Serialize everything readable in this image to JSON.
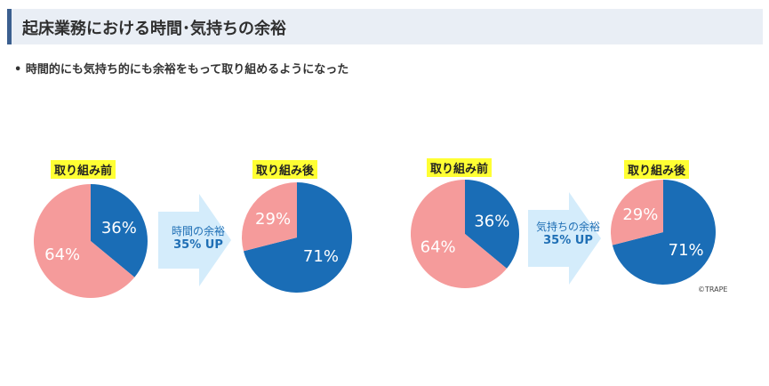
{
  "title": "起床業務における時間･気持ちの余裕",
  "bullet": "時間的にも気持ち的にも余裕をもって取り組めるようになった",
  "colors": {
    "blue": "#1a6db6",
    "pink": "#f59b9b",
    "arrow": "#d4ecfb",
    "label_bg": "#ffff33"
  },
  "arrows": [
    {
      "line1": "時間の余裕",
      "line2": "35% UP"
    },
    {
      "line1": "気持ちの余裕",
      "line2": "35% UP"
    }
  ],
  "credit": "©TRAPE",
  "chart_data": [
    {
      "type": "pie",
      "title": "取り組み前",
      "slices": [
        {
          "value": 36,
          "label": "36%",
          "color": "#1a6db6"
        },
        {
          "value": 64,
          "label": "64%",
          "color": "#f59b9b"
        }
      ]
    },
    {
      "type": "pie",
      "title": "取り組み後",
      "slices": [
        {
          "value": 71,
          "label": "71%",
          "color": "#1a6db6"
        },
        {
          "value": 29,
          "label": "29%",
          "color": "#f59b9b"
        }
      ]
    },
    {
      "type": "pie",
      "title": "取り組み前",
      "slices": [
        {
          "value": 36,
          "label": "36%",
          "color": "#1a6db6"
        },
        {
          "value": 64,
          "label": "64%",
          "color": "#f59b9b"
        }
      ]
    },
    {
      "type": "pie",
      "title": "取り組み後",
      "slices": [
        {
          "value": 71,
          "label": "71%",
          "color": "#1a6db6"
        },
        {
          "value": 29,
          "label": "29%",
          "color": "#f59b9b"
        }
      ]
    }
  ]
}
